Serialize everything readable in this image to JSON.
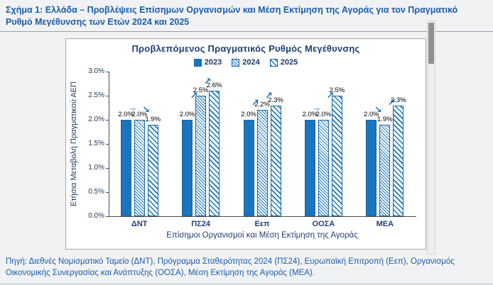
{
  "header": {
    "caption": "Σχήμα 1: Ελλάδα – Προβλέψεις Επίσημων Οργανισμών και Μέση Εκτίμηση της Αγοράς για τον Πραγματικό Ρυθμό Μεγέθυνσης των Ετών 2024 και 2025"
  },
  "footer": {
    "source": "Πηγή: Διεθνές Νομισματικό Ταμείο (ΔΝΤ), Πρόγραμμα Σταθερότητας 2024 (ΠΣ24), Ευρωπαϊκή Επιτροπή (Εεπ), Οργανισμός Οικονομικής Συνεργασίας και Ανάπτυξης (ΟΟΣΑ), Μέση Εκτίμηση της Αγοράς (ΜΕΑ)."
  },
  "colors": {
    "bar_blue": "#1b75bc",
    "caption_blue": "#1a5dab",
    "navy": "#17365d"
  },
  "chart_data": {
    "type": "bar",
    "title": "Προβλεπόμενος Πραγματικός Ρυθμός Μεγέθυνσης",
    "categories": [
      "ΔΝΤ",
      "ΠΣ24",
      "Εεπ",
      "ΟΟΣΑ",
      "ΜΕΑ"
    ],
    "series": [
      {
        "name": "2023",
        "pattern": "solid",
        "values": [
          2.0,
          2.0,
          2.0,
          2.0,
          2.0
        ],
        "labels": [
          "2.0%",
          "2.0%",
          "2.0%",
          "2.0%",
          "2.0%"
        ]
      },
      {
        "name": "2024",
        "pattern": "hatch-fine",
        "values": [
          2.0,
          2.5,
          2.2,
          2.0,
          1.9
        ],
        "labels": [
          "2.0%",
          "2.5%",
          "2.2%",
          "2.0%",
          "1.9%"
        ]
      },
      {
        "name": "2025",
        "pattern": "hatch-coarse",
        "values": [
          1.9,
          2.6,
          2.3,
          2.5,
          2.3
        ],
        "labels": [
          "1.9%",
          "2.6%",
          "2.3%",
          "2.5%",
          "2.3%"
        ]
      }
    ],
    "trend_arrows": [
      [
        "flat",
        "down"
      ],
      [
        "up",
        "up"
      ],
      [
        "up",
        "up"
      ],
      [
        "flat",
        "up"
      ],
      [
        "down",
        "up"
      ]
    ],
    "xlabel": "Επίσημοι Οργανισμοί και Μέση Εκτίμηση της Αγοράς",
    "ylabel": "Ετήσια Μεταβολή Πραγματικού ΑΕΠ",
    "ylim": [
      0,
      3.0
    ],
    "ytick_labels": [
      "3.0%",
      "2.5%",
      "2.0%",
      "1.5%",
      "1.0%",
      "0.5%",
      "0.0%"
    ],
    "legend_position": "top",
    "grid": false
  }
}
